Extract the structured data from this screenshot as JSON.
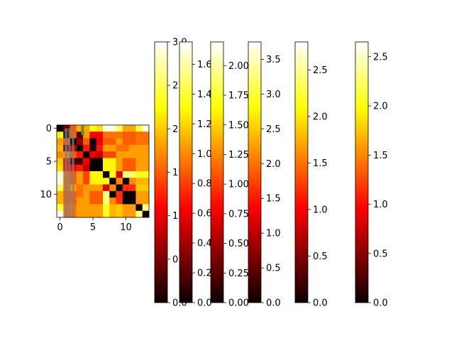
{
  "chart_data": {
    "type": "heatmap",
    "colormap": "hot",
    "heatmap": {
      "size": [
        14,
        14
      ],
      "xticks": [
        "0",
        "5",
        "10"
      ],
      "yticks": [
        "0",
        "5",
        "10"
      ],
      "xtick_values": [
        0,
        5,
        10
      ],
      "ytick_values": [
        0,
        5,
        10
      ],
      "vmin": 0,
      "vmax": 3.0,
      "values": [
        [
          0.0,
          0.4,
          1.5,
          1.9,
          1.85,
          2.3,
          2.1,
          2.9,
          2.9,
          2.5,
          1.85,
          1.85,
          2.4,
          2.95
        ],
        [
          2.2,
          0.0,
          1.5,
          0.3,
          1.8,
          1.0,
          1.1,
          1.6,
          1.6,
          1.6,
          1.5,
          1.5,
          1.6,
          1.6
        ],
        [
          1.8,
          1.5,
          0.0,
          0.6,
          1.5,
          0.0,
          1.0,
          1.5,
          1.5,
          1.8,
          1.5,
          1.5,
          1.6,
          1.6
        ],
        [
          1.9,
          0.4,
          0.8,
          0.0,
          1.2,
          0.1,
          1.2,
          1.8,
          1.8,
          1.6,
          1.6,
          1.8,
          1.8,
          1.8
        ],
        [
          1.7,
          1.8,
          1.5,
          1.2,
          0.0,
          1.0,
          0.8,
          1.4,
          1.4,
          1.8,
          1.8,
          1.8,
          1.8,
          1.8
        ],
        [
          2.0,
          1.0,
          0.3,
          0.2,
          1.0,
          0.0,
          0.0,
          2.2,
          2.2,
          1.8,
          1.5,
          1.5,
          1.8,
          1.8
        ],
        [
          2.1,
          1.1,
          1.0,
          1.2,
          0.8,
          0.0,
          0.0,
          2.2,
          2.2,
          1.8,
          1.5,
          1.5,
          1.8,
          1.8
        ],
        [
          2.9,
          1.6,
          1.5,
          1.8,
          1.4,
          2.2,
          2.2,
          0.0,
          2.3,
          0.9,
          2.6,
          2.6,
          2.3,
          2.3
        ],
        [
          2.9,
          1.6,
          1.5,
          1.8,
          1.4,
          2.2,
          2.2,
          2.3,
          0.0,
          1.7,
          0.0,
          1.7,
          1.9,
          1.9
        ],
        [
          2.5,
          1.6,
          1.8,
          1.6,
          1.8,
          1.8,
          1.8,
          0.9,
          1.7,
          0.0,
          1.3,
          1.3,
          2.0,
          2.0
        ],
        [
          1.9,
          1.5,
          1.5,
          1.6,
          1.8,
          1.5,
          1.5,
          2.6,
          0.0,
          1.3,
          0.0,
          0.0,
          1.8,
          1.8
        ],
        [
          1.9,
          1.5,
          1.5,
          1.8,
          1.8,
          1.5,
          1.5,
          2.6,
          1.7,
          1.3,
          0.0,
          0.0,
          1.8,
          1.8
        ],
        [
          2.4,
          1.6,
          1.6,
          1.8,
          1.8,
          1.8,
          1.8,
          2.3,
          1.9,
          2.0,
          1.8,
          1.8,
          0.0,
          2.6
        ],
        [
          2.95,
          1.6,
          1.6,
          1.8,
          1.8,
          1.8,
          1.8,
          2.3,
          1.9,
          2.0,
          1.8,
          1.8,
          2.6,
          0.0
        ]
      ],
      "overlay_color": "#808080",
      "accent_cell_color": "#6b8e23"
    },
    "colorbars": [
      {
        "vmin": 0,
        "vmax": 3.0,
        "ticks": [
          0.0,
          0.5,
          1.0,
          1.5,
          2.0,
          2.5,
          3.0
        ],
        "tick_labels": [
          "0.0",
          "0.5",
          "1.0",
          "1.5",
          "2.0",
          "2.5",
          "3.0"
        ]
      },
      {
        "vmin": 0,
        "vmax": 1.75,
        "ticks": [
          0.0,
          0.2,
          0.4,
          0.6,
          0.8,
          1.0,
          1.2,
          1.4,
          1.6
        ],
        "tick_labels": [
          "0.0",
          "0.2",
          "0.4",
          "0.6",
          "0.8",
          "1.0",
          "1.2",
          "1.4",
          "1.6"
        ]
      },
      {
        "vmin": 0,
        "vmax": 2.2,
        "ticks": [
          0.0,
          0.25,
          0.5,
          0.75,
          1.0,
          1.25,
          1.5,
          1.75,
          2.0
        ],
        "tick_labels": [
          "0.00",
          "0.25",
          "0.50",
          "0.75",
          "1.00",
          "1.25",
          "1.50",
          "1.75",
          "2.00"
        ]
      },
      {
        "vmin": 0,
        "vmax": 3.75,
        "ticks": [
          0.0,
          0.5,
          1.0,
          1.5,
          2.0,
          2.5,
          3.0,
          3.5
        ],
        "tick_labels": [
          "0.0",
          "0.5",
          "1.0",
          "1.5",
          "2.0",
          "2.5",
          "3.0",
          "3.5"
        ]
      },
      {
        "vmin": 0,
        "vmax": 2.8,
        "ticks": [
          0.0,
          0.5,
          1.0,
          1.5,
          2.0,
          2.5
        ],
        "tick_labels": [
          "0.0",
          "0.5",
          "1.0",
          "1.5",
          "2.0",
          "2.5"
        ]
      },
      {
        "vmin": 0,
        "vmax": 2.65,
        "ticks": [
          0.0,
          0.5,
          1.0,
          1.5,
          2.0,
          2.5
        ],
        "tick_labels": [
          "0.0",
          "0.5",
          "1.0",
          "1.5",
          "2.0",
          "2.5"
        ]
      }
    ]
  }
}
